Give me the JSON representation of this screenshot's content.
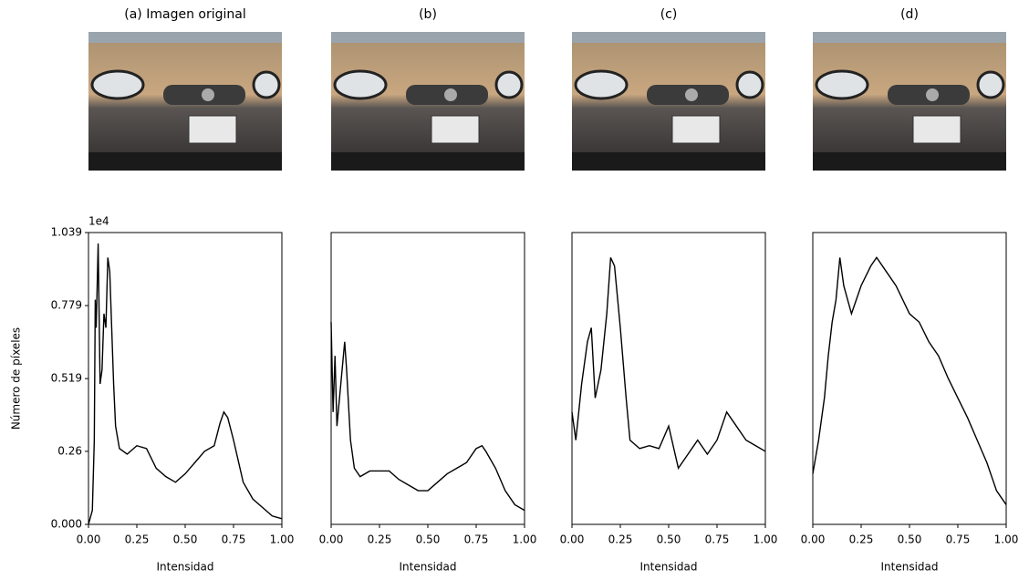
{
  "chart_data": [
    {
      "type": "line",
      "title": "(a) Imagen original",
      "xlabel": "Intensidad",
      "ylabel": "Número de píxeles",
      "offset_label": "1e4",
      "x": [
        0,
        0.02,
        0.03,
        0.035,
        0.04,
        0.05,
        0.06,
        0.07,
        0.08,
        0.09,
        0.1,
        0.11,
        0.12,
        0.13,
        0.14,
        0.16,
        0.2,
        0.25,
        0.3,
        0.35,
        0.4,
        0.45,
        0.5,
        0.55,
        0.6,
        0.65,
        0.68,
        0.7,
        0.72,
        0.75,
        0.8,
        0.85,
        0.9,
        0.95,
        1.0
      ],
      "values": [
        0,
        0.05,
        0.3,
        0.8,
        0.7,
        1.0,
        0.5,
        0.55,
        0.75,
        0.7,
        0.95,
        0.9,
        0.7,
        0.5,
        0.35,
        0.27,
        0.25,
        0.28,
        0.27,
        0.2,
        0.17,
        0.15,
        0.18,
        0.22,
        0.26,
        0.28,
        0.36,
        0.4,
        0.38,
        0.3,
        0.15,
        0.09,
        0.06,
        0.03,
        0.02
      ],
      "color": "#000000",
      "xlim": [
        0,
        1
      ],
      "ylim": [
        0,
        1.039
      ],
      "xticks": [
        {
          "value": 0,
          "label": "0.00"
        },
        {
          "value": 0.25,
          "label": "0.25"
        },
        {
          "value": 0.5,
          "label": "0.50"
        },
        {
          "value": 0.75,
          "label": "0.75"
        },
        {
          "value": 1,
          "label": "1.00"
        }
      ],
      "yticks": [
        {
          "value": 0,
          "label": "0.000"
        },
        0.26,
        0.519,
        0.779,
        1.039
      ]
    },
    {
      "type": "line",
      "title": "(b)",
      "xlabel": "Intensidad",
      "x": [
        0,
        0.01,
        0.02,
        0.03,
        0.05,
        0.07,
        0.08,
        0.1,
        0.12,
        0.15,
        0.2,
        0.25,
        0.3,
        0.35,
        0.4,
        0.45,
        0.5,
        0.55,
        0.6,
        0.65,
        0.7,
        0.75,
        0.78,
        0.8,
        0.85,
        0.9,
        0.95,
        1.0
      ],
      "values": [
        0.72,
        0.4,
        0.6,
        0.35,
        0.5,
        0.65,
        0.55,
        0.3,
        0.2,
        0.17,
        0.19,
        0.19,
        0.19,
        0.16,
        0.14,
        0.12,
        0.12,
        0.15,
        0.18,
        0.2,
        0.22,
        0.27,
        0.28,
        0.26,
        0.2,
        0.12,
        0.07,
        0.05
      ],
      "color": "#000000",
      "xlim": [
        0,
        1
      ],
      "ylim": [
        0,
        1.039
      ],
      "xticks": [
        {
          "value": 0,
          "label": "0.00"
        },
        {
          "value": 0.25,
          "label": "0.25"
        },
        {
          "value": 0.5,
          "label": "0.50"
        },
        {
          "value": 0.75,
          "label": "0.75"
        },
        {
          "value": 1,
          "label": "1.00"
        }
      ]
    },
    {
      "type": "line",
      "title": "(c)",
      "xlabel": "Intensidad",
      "x": [
        0,
        0.02,
        0.05,
        0.08,
        0.1,
        0.12,
        0.15,
        0.18,
        0.2,
        0.22,
        0.25,
        0.28,
        0.3,
        0.35,
        0.4,
        0.45,
        0.5,
        0.55,
        0.6,
        0.65,
        0.7,
        0.75,
        0.8,
        0.85,
        0.9,
        0.95,
        1.0
      ],
      "values": [
        0.4,
        0.3,
        0.5,
        0.65,
        0.7,
        0.45,
        0.55,
        0.75,
        0.95,
        0.92,
        0.7,
        0.45,
        0.3,
        0.27,
        0.28,
        0.27,
        0.35,
        0.2,
        0.25,
        0.3,
        0.25,
        0.3,
        0.4,
        0.35,
        0.3,
        0.28,
        0.26
      ],
      "color": "#000000",
      "xlim": [
        0,
        1
      ],
      "ylim": [
        0,
        1.039
      ],
      "xticks": [
        {
          "value": 0,
          "label": "0.00"
        },
        {
          "value": 0.25,
          "label": "0.25"
        },
        {
          "value": 0.5,
          "label": "0.50"
        },
        {
          "value": 0.75,
          "label": "0.75"
        },
        {
          "value": 1,
          "label": "1.00"
        }
      ]
    },
    {
      "type": "line",
      "title": "(d)",
      "xlabel": "Intensidad",
      "x": [
        0,
        0.03,
        0.06,
        0.08,
        0.1,
        0.12,
        0.14,
        0.16,
        0.2,
        0.25,
        0.3,
        0.33,
        0.38,
        0.43,
        0.5,
        0.55,
        0.6,
        0.65,
        0.7,
        0.75,
        0.8,
        0.85,
        0.9,
        0.95,
        1.0
      ],
      "values": [
        0.18,
        0.3,
        0.45,
        0.6,
        0.72,
        0.8,
        0.95,
        0.85,
        0.75,
        0.85,
        0.92,
        0.95,
        0.9,
        0.85,
        0.75,
        0.72,
        0.65,
        0.6,
        0.52,
        0.45,
        0.38,
        0.3,
        0.22,
        0.12,
        0.07
      ],
      "color": "#000000",
      "xlim": [
        0,
        1
      ],
      "ylim": [
        0,
        1.039
      ],
      "xticks": [
        {
          "value": 0,
          "label": "0.00"
        },
        {
          "value": 0.25,
          "label": "0.25"
        },
        {
          "value": 0.5,
          "label": "0.50"
        },
        {
          "value": 0.75,
          "label": "0.75"
        },
        {
          "value": 1,
          "label": "1.00"
        }
      ]
    }
  ]
}
